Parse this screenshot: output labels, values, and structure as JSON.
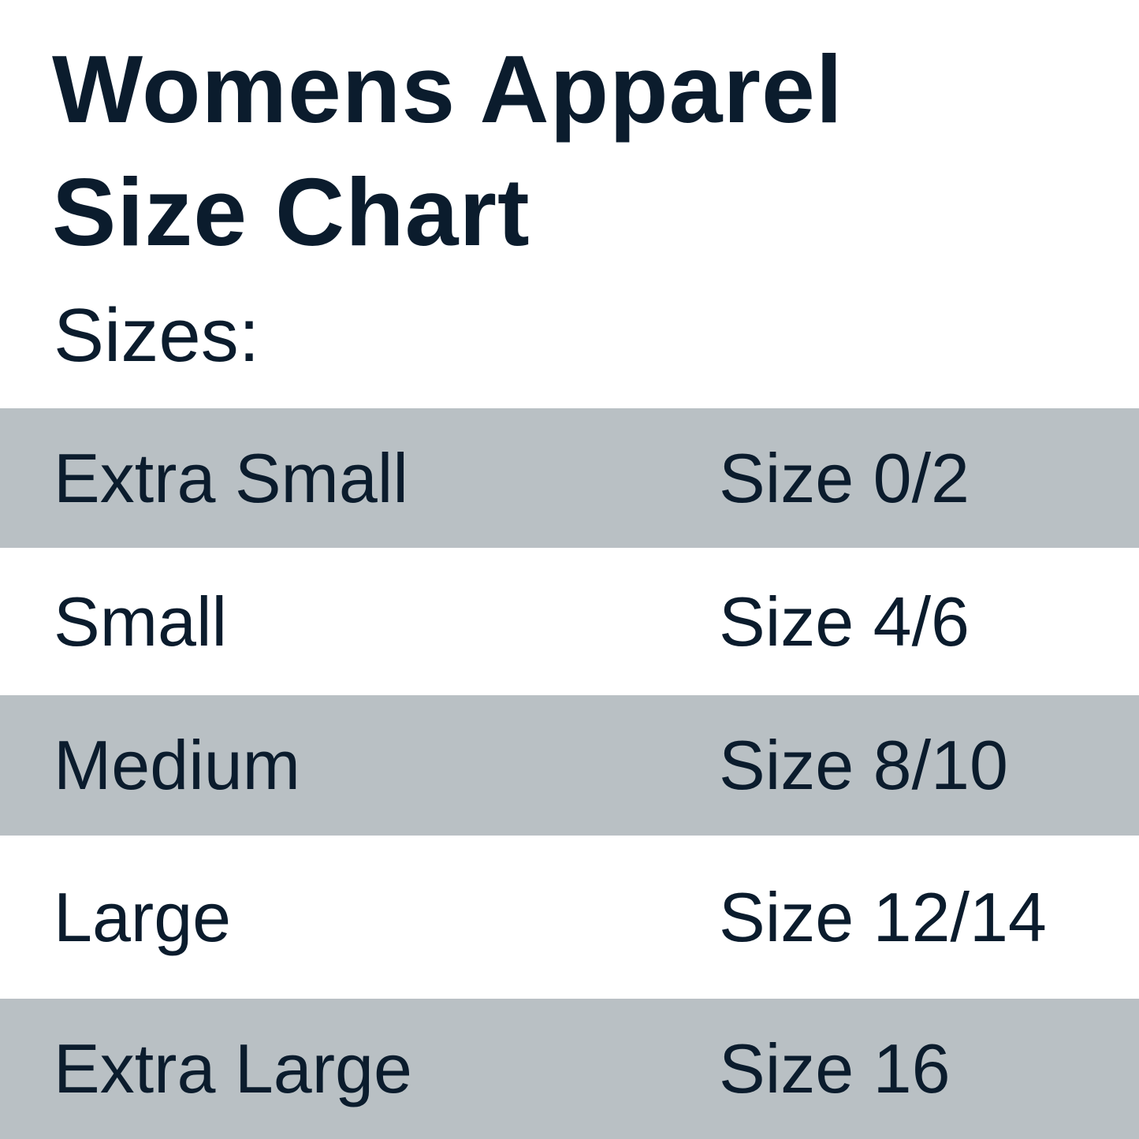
{
  "title_line1": "Womens Apparel",
  "title_line2": "Size Chart",
  "subtitle": "Sizes:",
  "colors": {
    "text": "#0b1c2d",
    "band": "#b9c0c4",
    "background": "#ffffff"
  },
  "rows": [
    {
      "label": "Extra Small",
      "size": "Size 0/2"
    },
    {
      "label": "Small",
      "size": "Size 4/6"
    },
    {
      "label": "Medium",
      "size": "Size 8/10"
    },
    {
      "label": "Large",
      "size": "Size 12/14"
    },
    {
      "label": "Extra Large",
      "size": "Size 16"
    }
  ]
}
